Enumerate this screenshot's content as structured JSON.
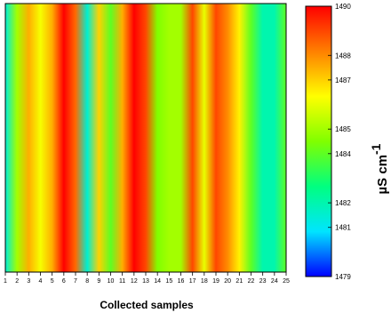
{
  "chart_data": {
    "type": "heatmap",
    "title": "",
    "xlabel": "Collected samples",
    "ylabel": "",
    "x_ticks": [
      "1",
      "2",
      "3",
      "4",
      "5",
      "6",
      "7",
      "8",
      "9",
      "10",
      "11",
      "12",
      "13",
      "14",
      "15",
      "16",
      "17",
      "18",
      "19",
      "20",
      "21",
      "22",
      "23",
      "24",
      "25"
    ],
    "x": [
      1,
      2,
      3,
      4,
      5,
      6,
      7,
      8,
      9,
      10,
      11,
      12,
      13,
      14,
      15,
      16,
      17,
      18,
      19,
      20,
      21,
      22,
      23,
      24,
      25
    ],
    "values": [
      1481.4,
      1485.0,
      1487.5,
      1486.2,
      1487.5,
      1490.0,
      1488.5,
      1481.5,
      1487.0,
      1484.0,
      1487.5,
      1490.0,
      1489.0,
      1484.5,
      1485.0,
      1485.0,
      1489.0,
      1486.0,
      1489.0,
      1488.0,
      1486.5,
      1484.0,
      1482.0,
      1482.0,
      1484.0
    ],
    "colorbar": {
      "label": "µS cm",
      "label_superscript": "-1",
      "min": 1479,
      "max": 1490,
      "ticks": [
        1479,
        1481,
        1482,
        1484,
        1485,
        1487,
        1488,
        1490
      ],
      "tick_labels": [
        "1479",
        "1481",
        "1482",
        "1484",
        "1485",
        "1487",
        "1488",
        "1490"
      ],
      "colormap": [
        "#0000ff",
        "#00e5ff",
        "#00ff80",
        "#80ff00",
        "#ffff00",
        "#ff8000",
        "#ff0000"
      ]
    }
  }
}
